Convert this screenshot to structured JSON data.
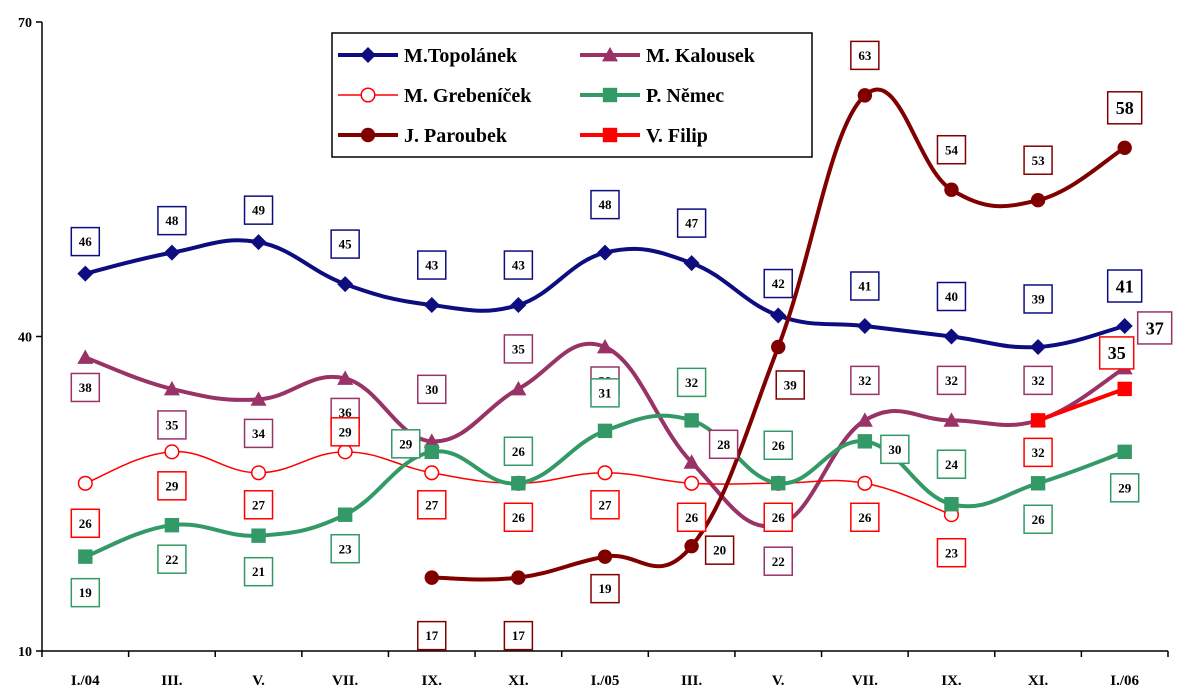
{
  "chart_data": {
    "type": "line",
    "title": "",
    "xlabel": "",
    "ylabel": "",
    "ylim": [
      10,
      70
    ],
    "yticks": [
      "10",
      "40",
      "70"
    ],
    "categories": [
      "I./04",
      "III.",
      "V.",
      "VII.",
      "IX.",
      "XI.",
      "I./05",
      "III.",
      "V.",
      "VII.",
      "IX.",
      "XI.",
      "I./06"
    ],
    "grid": false,
    "legend": "top-center",
    "series": [
      {
        "name": "M.Topolánek",
        "color": "#0d0d80",
        "marker": "diamond",
        "values": [
          46,
          48,
          49,
          45,
          43,
          43,
          48,
          47,
          42,
          41,
          40,
          39,
          41
        ]
      },
      {
        "name": "M. Kalousek",
        "color": "#993366",
        "marker": "triangle",
        "values": [
          38,
          35,
          34,
          36,
          30,
          35,
          39,
          28,
          22,
          32,
          32,
          32,
          37
        ]
      },
      {
        "name": "M. Grebeníček",
        "color": "#ff0000",
        "marker": "circle-open",
        "values": [
          26,
          29,
          27,
          29,
          27,
          26,
          27,
          26,
          26,
          26,
          23,
          null,
          null
        ]
      },
      {
        "name": "P. Němec",
        "color": "#339966",
        "marker": "square",
        "values": [
          19,
          22,
          21,
          23,
          29,
          26,
          31,
          32,
          26,
          30,
          24,
          26,
          29
        ]
      },
      {
        "name": "J. Paroubek",
        "color": "#800000",
        "marker": "circle",
        "values": [
          null,
          null,
          null,
          null,
          17,
          17,
          19,
          20,
          39,
          63,
          54,
          53,
          58
        ]
      },
      {
        "name": "V. Filip",
        "color": "#ff0000",
        "marker": "square",
        "values": [
          null,
          null,
          null,
          null,
          null,
          null,
          null,
          null,
          null,
          null,
          null,
          32,
          35
        ]
      }
    ]
  }
}
